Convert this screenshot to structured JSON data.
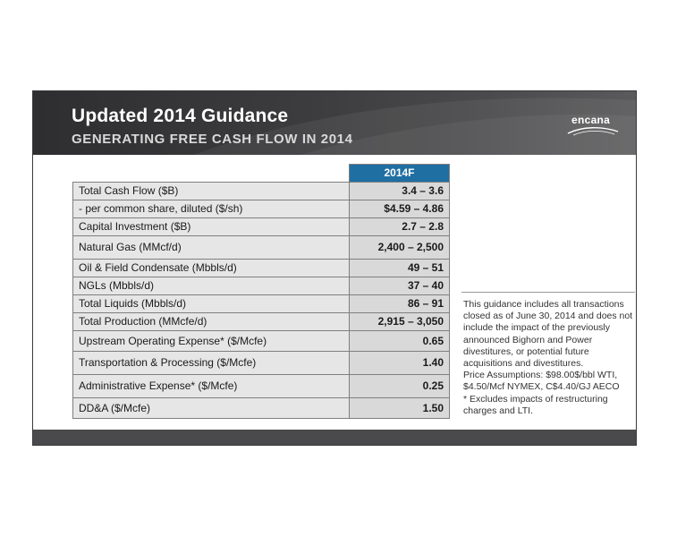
{
  "slide": {
    "title": "Updated 2014 Guidance",
    "subtitle": "GENERATING FREE CASH FLOW IN 2014",
    "logo": "encana"
  },
  "table": {
    "column_header": "2014F",
    "rows": [
      {
        "label": "Total Cash Flow ($B)",
        "value": "3.4 – 3.6"
      },
      {
        "label": "- per common share, diluted ($/sh)",
        "value": "$4.59 – 4.86"
      },
      {
        "label": "Capital Investment ($B)",
        "value": "2.7 – 2.8"
      },
      {
        "label": "Natural Gas (MMcf/d)",
        "value": "2,400 – 2,500"
      },
      {
        "label": "Oil & Field Condensate (Mbbls/d)",
        "value": "49 – 51"
      },
      {
        "label": "NGLs (Mbbls/d)",
        "value": "37 – 40"
      },
      {
        "label": "Total Liquids (Mbbls/d)",
        "value": "86 – 91"
      },
      {
        "label": "Total Production (MMcfe/d)",
        "value": "2,915 – 3,050"
      },
      {
        "label": "Upstream Operating Expense* ($/Mcfe)",
        "value": "0.65"
      },
      {
        "label": "Transportation & Processing ($/Mcfe)",
        "value": "1.40"
      },
      {
        "label": "Administrative Expense* ($/Mcfe)",
        "value": "0.25"
      },
      {
        "label": "DD&A ($/Mcfe)",
        "value": "1.50"
      }
    ]
  },
  "notes": {
    "line1": "This guidance includes all transactions closed as of June 30, 2014 and does not include the impact of the previously announced Bighorn and Power divestitures, or potential future acquisitions and divestitures.",
    "line2": "Price Assumptions: $98.00$/bbl WTI, $4.50/Mcf NYMEX, C$4.40/GJ AECO",
    "line3": "* Excludes impacts of restructuring charges and LTI."
  },
  "colors": {
    "header_dark": "#2e2e30",
    "column_header_blue": "#1f6fa3",
    "cell_gray": "#e6e6e6"
  }
}
